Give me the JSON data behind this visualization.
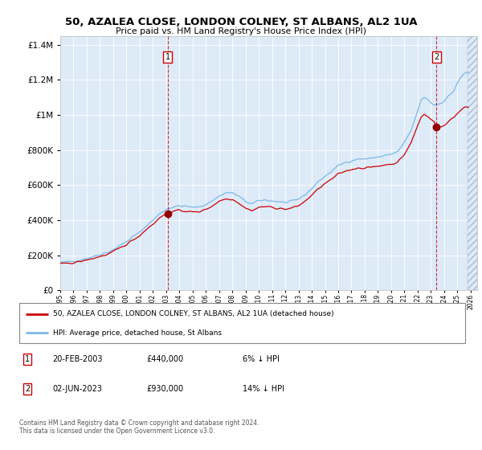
{
  "title": "50, AZALEA CLOSE, LONDON COLNEY, ST ALBANS, AL2 1UA",
  "subtitle": "Price paid vs. HM Land Registry's House Price Index (HPI)",
  "xlim_start": 1995.0,
  "xlim_end": 2026.5,
  "ylim_min": 0,
  "ylim_max": 1450000,
  "hpi_color": "#7ab8e8",
  "price_color": "#cc0000",
  "transaction1_date": 2003.13,
  "transaction1_price": 440000,
  "transaction2_date": 2023.42,
  "transaction2_price": 930000,
  "legend_label1": "50, AZALEA CLOSE, LONDON COLNEY, ST ALBANS, AL2 1UA (detached house)",
  "legend_label2": "HPI: Average price, detached house, St Albans",
  "note1_date": "20-FEB-2003",
  "note1_price": "£440,000",
  "note1_hpi": "6% ↓ HPI",
  "note2_date": "02-JUN-2023",
  "note2_price": "£930,000",
  "note2_hpi": "14% ↓ HPI",
  "footer": "Contains HM Land Registry data © Crown copyright and database right 2024.\nThis data is licensed under the Open Government Licence v3.0.",
  "plot_bg_color": "#ddeaf8",
  "hpi_points": [
    [
      1995.0,
      158000
    ],
    [
      1995.5,
      160000
    ],
    [
      1996.0,
      168000
    ],
    [
      1996.5,
      172000
    ],
    [
      1997.0,
      183000
    ],
    [
      1997.5,
      192000
    ],
    [
      1998.0,
      205000
    ],
    [
      1998.5,
      215000
    ],
    [
      1999.0,
      232000
    ],
    [
      1999.5,
      255000
    ],
    [
      2000.0,
      278000
    ],
    [
      2000.5,
      305000
    ],
    [
      2001.0,
      330000
    ],
    [
      2001.5,
      368000
    ],
    [
      2002.0,
      400000
    ],
    [
      2002.5,
      435000
    ],
    [
      2003.0,
      462000
    ],
    [
      2003.5,
      475000
    ],
    [
      2004.0,
      480000
    ],
    [
      2004.5,
      478000
    ],
    [
      2005.0,
      472000
    ],
    [
      2005.5,
      475000
    ],
    [
      2006.0,
      490000
    ],
    [
      2006.5,
      510000
    ],
    [
      2007.0,
      538000
    ],
    [
      2007.5,
      555000
    ],
    [
      2008.0,
      555000
    ],
    [
      2008.5,
      535000
    ],
    [
      2009.0,
      505000
    ],
    [
      2009.5,
      492000
    ],
    [
      2010.0,
      510000
    ],
    [
      2010.5,
      515000
    ],
    [
      2011.0,
      510000
    ],
    [
      2011.5,
      505000
    ],
    [
      2012.0,
      500000
    ],
    [
      2012.5,
      505000
    ],
    [
      2013.0,
      520000
    ],
    [
      2013.5,
      545000
    ],
    [
      2014.0,
      580000
    ],
    [
      2014.5,
      620000
    ],
    [
      2015.0,
      650000
    ],
    [
      2015.5,
      678000
    ],
    [
      2016.0,
      710000
    ],
    [
      2016.5,
      728000
    ],
    [
      2017.0,
      740000
    ],
    [
      2017.5,
      748000
    ],
    [
      2018.0,
      750000
    ],
    [
      2018.5,
      752000
    ],
    [
      2019.0,
      760000
    ],
    [
      2019.5,
      768000
    ],
    [
      2020.0,
      775000
    ],
    [
      2020.5,
      790000
    ],
    [
      2021.0,
      840000
    ],
    [
      2021.5,
      910000
    ],
    [
      2022.0,
      1020000
    ],
    [
      2022.25,
      1080000
    ],
    [
      2022.5,
      1100000
    ],
    [
      2022.75,
      1090000
    ],
    [
      2023.0,
      1070000
    ],
    [
      2023.25,
      1058000
    ],
    [
      2023.5,
      1060000
    ],
    [
      2023.75,
      1068000
    ],
    [
      2024.0,
      1080000
    ],
    [
      2024.25,
      1100000
    ],
    [
      2024.5,
      1120000
    ],
    [
      2024.75,
      1140000
    ],
    [
      2025.0,
      1180000
    ],
    [
      2025.25,
      1210000
    ],
    [
      2025.5,
      1235000
    ],
    [
      2025.75,
      1245000
    ]
  ],
  "price_points": [
    [
      1995.0,
      148000
    ],
    [
      1995.5,
      152000
    ],
    [
      1996.0,
      158000
    ],
    [
      1996.5,
      163000
    ],
    [
      1997.0,
      172000
    ],
    [
      1997.5,
      182000
    ],
    [
      1998.0,
      193000
    ],
    [
      1998.5,
      202000
    ],
    [
      1999.0,
      218000
    ],
    [
      1999.5,
      240000
    ],
    [
      2000.0,
      262000
    ],
    [
      2000.5,
      288000
    ],
    [
      2001.0,
      312000
    ],
    [
      2001.5,
      348000
    ],
    [
      2002.0,
      378000
    ],
    [
      2002.5,
      412000
    ],
    [
      2003.0,
      438000
    ],
    [
      2003.13,
      440000
    ],
    [
      2003.5,
      448000
    ],
    [
      2004.0,
      455000
    ],
    [
      2004.5,
      452000
    ],
    [
      2005.0,
      445000
    ],
    [
      2005.5,
      448000
    ],
    [
      2006.0,
      462000
    ],
    [
      2006.5,
      482000
    ],
    [
      2007.0,
      508000
    ],
    [
      2007.5,
      522000
    ],
    [
      2008.0,
      520000
    ],
    [
      2008.5,
      498000
    ],
    [
      2009.0,
      468000
    ],
    [
      2009.5,
      455000
    ],
    [
      2010.0,
      472000
    ],
    [
      2010.5,
      478000
    ],
    [
      2011.0,
      472000
    ],
    [
      2011.5,
      468000
    ],
    [
      2012.0,
      462000
    ],
    [
      2012.5,
      468000
    ],
    [
      2013.0,
      482000
    ],
    [
      2013.5,
      508000
    ],
    [
      2014.0,
      542000
    ],
    [
      2014.5,
      578000
    ],
    [
      2015.0,
      608000
    ],
    [
      2015.5,
      632000
    ],
    [
      2016.0,
      662000
    ],
    [
      2016.5,
      678000
    ],
    [
      2017.0,
      690000
    ],
    [
      2017.5,
      698000
    ],
    [
      2018.0,
      698000
    ],
    [
      2018.5,
      700000
    ],
    [
      2019.0,
      708000
    ],
    [
      2019.5,
      715000
    ],
    [
      2020.0,
      720000
    ],
    [
      2020.5,
      730000
    ],
    [
      2021.0,
      775000
    ],
    [
      2021.5,
      840000
    ],
    [
      2022.0,
      938000
    ],
    [
      2022.25,
      985000
    ],
    [
      2022.5,
      1005000
    ],
    [
      2022.75,
      995000
    ],
    [
      2023.0,
      975000
    ],
    [
      2023.25,
      960000
    ],
    [
      2023.42,
      930000
    ],
    [
      2023.5,
      925000
    ],
    [
      2023.75,
      930000
    ],
    [
      2024.0,
      940000
    ],
    [
      2024.25,
      958000
    ],
    [
      2024.5,
      975000
    ],
    [
      2024.75,
      988000
    ],
    [
      2025.0,
      1010000
    ],
    [
      2025.25,
      1025000
    ],
    [
      2025.5,
      1038000
    ],
    [
      2025.75,
      1048000
    ]
  ]
}
